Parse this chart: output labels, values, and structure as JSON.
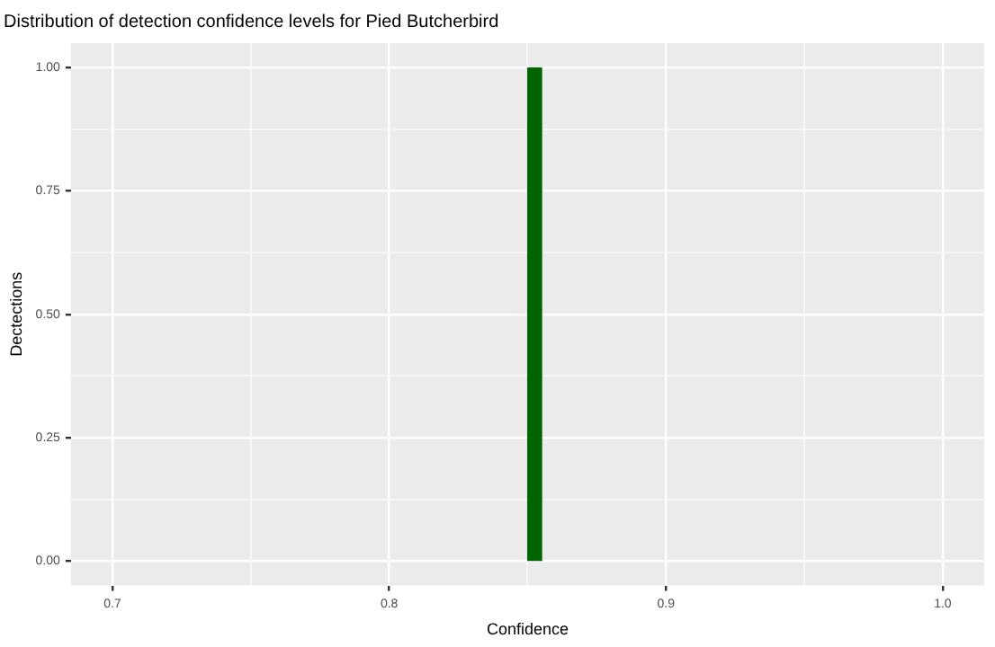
{
  "chart_data": {
    "type": "histogram",
    "title": "Distribution of detection confidence levels for Pied Butcherbird",
    "xlabel": "Confidence",
    "ylabel": "Dectections",
    "bins": [
      0.85,
      0.855
    ],
    "values": [
      1
    ],
    "color": "#006400",
    "xlim": [
      0.685,
      1.015
    ],
    "xticks": [
      0.7,
      {
        "value": 0.75,
        "label": null
      },
      0.8,
      {
        "value": 0.85,
        "label": null
      },
      0.9,
      {
        "value": 0.95,
        "label": null
      },
      {
        "value": 1.0,
        "label": "1.0"
      }
    ],
    "ylim": [
      -0.05,
      1.05
    ],
    "yticks": [
      {
        "value": 0,
        "label": "0.00"
      },
      {
        "value": 0.125,
        "label": null
      },
      {
        "value": 0.25,
        "label": "0.25"
      },
      {
        "value": 0.375,
        "label": null
      },
      {
        "value": 0.5,
        "label": "0.50"
      },
      {
        "value": 0.625,
        "label": null
      },
      {
        "value": 0.75,
        "label": "0.75"
      },
      {
        "value": 0.875,
        "label": null
      },
      {
        "value": 1,
        "label": "1.00"
      }
    ],
    "grid": true
  }
}
